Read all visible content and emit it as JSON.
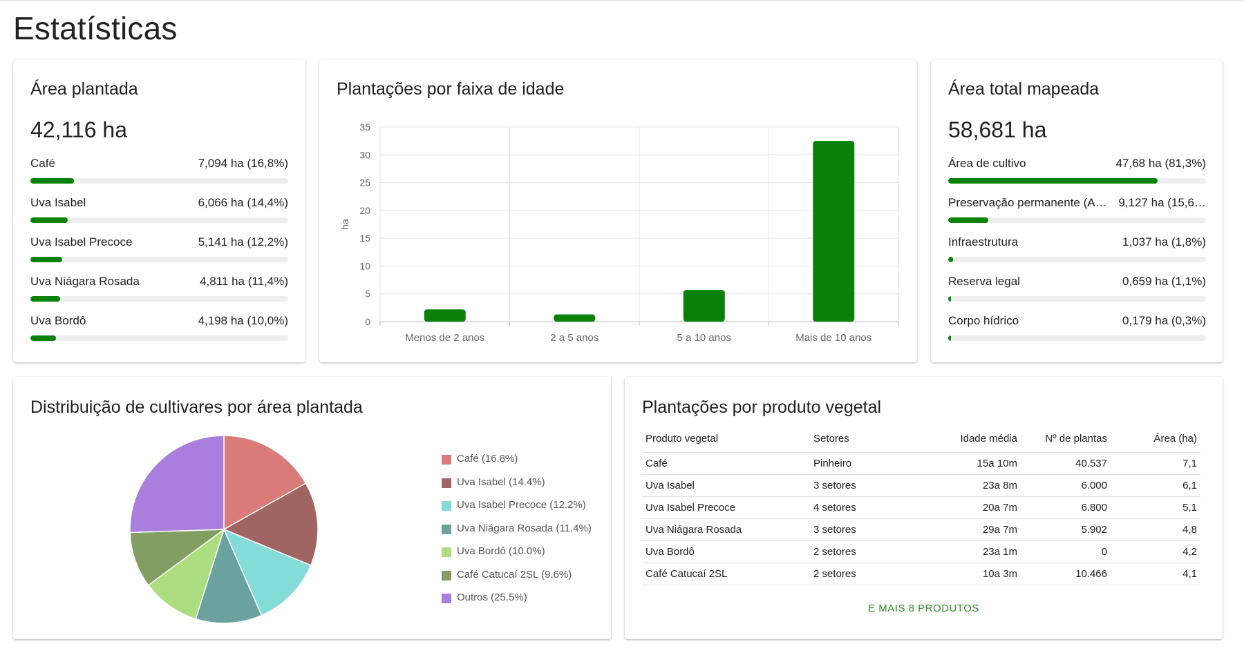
{
  "page": {
    "title": "Estatísticas"
  },
  "colors": {
    "bar_green": "#0a820a",
    "track": "#eeeeee",
    "link_green": "#2e8b24"
  },
  "area_plantada": {
    "title": "Área plantada",
    "total": "42,116 ha",
    "items": [
      {
        "label": "Café",
        "value": "7,094 ha (16,8%)",
        "fraction": 0.168
      },
      {
        "label": "Uva Isabel",
        "value": "6,066 ha (14,4%)",
        "fraction": 0.144
      },
      {
        "label": "Uva Isabel Precoce",
        "value": "5,141 ha (12,2%)",
        "fraction": 0.122
      },
      {
        "label": "Uva Niágara Rosada",
        "value": "4,811 ha (11,4%)",
        "fraction": 0.114
      },
      {
        "label": "Uva Bordô",
        "value": "4,198 ha (10,0%)",
        "fraction": 0.1
      }
    ]
  },
  "faixa_idade": {
    "title": "Plantações por faixa de idade",
    "chart_data": {
      "type": "bar",
      "categories": [
        "Menos de 2 anos",
        "2 a 5 anos",
        "5 a 10 anos",
        "Mais de 10 anos"
      ],
      "values": [
        2.2,
        1.3,
        5.7,
        32.5
      ],
      "ylabel": "ha",
      "ylim": [
        0,
        35
      ],
      "yticks": [
        "0",
        "5",
        "10",
        "15",
        "20",
        "25",
        "30",
        "35"
      ],
      "color": "#0a820a",
      "grid": true
    }
  },
  "area_total": {
    "title": "Área total mapeada",
    "total": "58,681 ha",
    "items": [
      {
        "label": "Área de cultivo",
        "value": "47,68 ha (81,3%)",
        "fraction": 0.813
      },
      {
        "label": "Preservação permanente (A…",
        "value": "9,127 ha (15,6…",
        "fraction": 0.156
      },
      {
        "label": "Infraestrutura",
        "value": "1,037 ha (1,8%)",
        "fraction": 0.018
      },
      {
        "label": "Reserva legal",
        "value": "0,659 ha (1,1%)",
        "fraction": 0.011
      },
      {
        "label": "Corpo hídrico",
        "value": "0,179 ha (0,3%)",
        "fraction": 0.003
      }
    ]
  },
  "distribuicao": {
    "title": "Distribuição de cultivares por área plantada",
    "chart_data": {
      "type": "pie",
      "slices": [
        {
          "label": "Café (16.8%)",
          "value": 16.8,
          "color": "#d97b78"
        },
        {
          "label": "Uva Isabel (14.4%)",
          "value": 14.4,
          "color": "#a06562"
        },
        {
          "label": "Uva Isabel Precoce (12.2%)",
          "value": 12.2,
          "color": "#84dcd9"
        },
        {
          "label": "Uva Niágara Rosada (11.4%)",
          "value": 11.4,
          "color": "#6ba19f"
        },
        {
          "label": "Uva Bordô (10.0%)",
          "value": 10.0,
          "color": "#acdd7e"
        },
        {
          "label": "Café Catucaí 2SL (9.6%)",
          "value": 9.6,
          "color": "#829e62"
        },
        {
          "label": "Outros (25.5%)",
          "value": 25.5,
          "color": "#a97edc"
        }
      ]
    }
  },
  "produto_vegetal": {
    "title": "Plantações por produto vegetal",
    "columns": [
      "Produto vegetal",
      "Setores",
      "Idade média",
      "Nº de plantas",
      "Área (ha)"
    ],
    "rows": [
      [
        "Café",
        "Pinheiro",
        "15a 10m",
        "40.537",
        "7,1"
      ],
      [
        "Uva Isabel",
        "3 setores",
        "23a 8m",
        "6.000",
        "6,1"
      ],
      [
        "Uva Isabel Precoce",
        "4 setores",
        "20a 7m",
        "6.800",
        "5,1"
      ],
      [
        "Uva Niágara Rosada",
        "3 setores",
        "29a 7m",
        "5.902",
        "4,8"
      ],
      [
        "Uva Bordô",
        "2 setores",
        "23a 1m",
        "0",
        "4,2"
      ],
      [
        "Café Catucaí 2SL",
        "2 setores",
        "10a 3m",
        "10.466",
        "4,1"
      ]
    ],
    "more_label": "E MAIS 8 PRODUTOS"
  }
}
